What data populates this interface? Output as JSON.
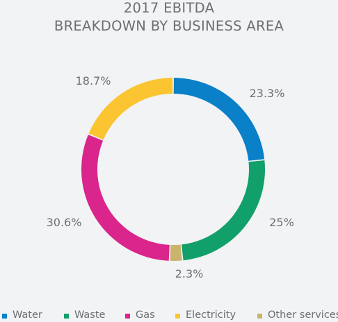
{
  "chart_data": {
    "type": "pie",
    "title_line1": "2017 EBITDA",
    "title_line2": "BREAKDOWN BY BUSINESS AREA",
    "series": [
      {
        "name": "Water",
        "value": 23.3,
        "label": "23.3%",
        "color": "#0a80c8"
      },
      {
        "name": "Waste",
        "value": 25.0,
        "label": "25%",
        "color": "#11a06a"
      },
      {
        "name": "Other services",
        "value": 2.3,
        "label": "2.3%",
        "color": "#c9b46e"
      },
      {
        "name": "Gas",
        "value": 30.6,
        "label": "30.6%",
        "color": "#d9258c"
      },
      {
        "name": "Electricity",
        "value": 18.7,
        "label": "18.7%",
        "color": "#fbc531"
      }
    ],
    "legend_order": [
      "Water",
      "Waste",
      "Gas",
      "Electricity",
      "Other services"
    ],
    "legend_position": "bottom",
    "style": "donut"
  }
}
